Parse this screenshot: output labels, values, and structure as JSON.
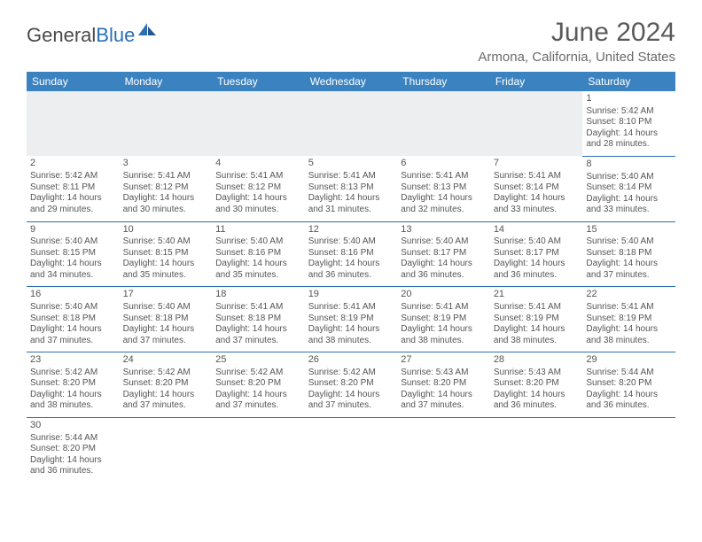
{
  "logo": {
    "text_general": "General",
    "text_blue": "Blue"
  },
  "title": "June 2024",
  "location": "Armona, California, United States",
  "dayHeaders": [
    "Sunday",
    "Monday",
    "Tuesday",
    "Wednesday",
    "Thursday",
    "Friday",
    "Saturday"
  ],
  "colors": {
    "header_bg": "#3b83c0",
    "header_text": "#ffffff",
    "row_border": "#2a6fb5",
    "blank_bg": "#eceef0",
    "body_text": "#555555",
    "title_text": "#5a5a5a",
    "location_text": "#6a6a6a",
    "logo_gray": "#4a4a4a",
    "logo_blue": "#2a6fb5"
  },
  "fonts": {
    "title_size": 30,
    "location_size": 15,
    "header_size": 12,
    "cell_size": 10,
    "daynum_size": 11
  },
  "weeks": [
    [
      null,
      null,
      null,
      null,
      null,
      null,
      {
        "day": "1",
        "sunrise": "Sunrise: 5:42 AM",
        "sunset": "Sunset: 8:10 PM",
        "daylight1": "Daylight: 14 hours",
        "daylight2": "and 28 minutes."
      }
    ],
    [
      {
        "day": "2",
        "sunrise": "Sunrise: 5:42 AM",
        "sunset": "Sunset: 8:11 PM",
        "daylight1": "Daylight: 14 hours",
        "daylight2": "and 29 minutes."
      },
      {
        "day": "3",
        "sunrise": "Sunrise: 5:41 AM",
        "sunset": "Sunset: 8:12 PM",
        "daylight1": "Daylight: 14 hours",
        "daylight2": "and 30 minutes."
      },
      {
        "day": "4",
        "sunrise": "Sunrise: 5:41 AM",
        "sunset": "Sunset: 8:12 PM",
        "daylight1": "Daylight: 14 hours",
        "daylight2": "and 30 minutes."
      },
      {
        "day": "5",
        "sunrise": "Sunrise: 5:41 AM",
        "sunset": "Sunset: 8:13 PM",
        "daylight1": "Daylight: 14 hours",
        "daylight2": "and 31 minutes."
      },
      {
        "day": "6",
        "sunrise": "Sunrise: 5:41 AM",
        "sunset": "Sunset: 8:13 PM",
        "daylight1": "Daylight: 14 hours",
        "daylight2": "and 32 minutes."
      },
      {
        "day": "7",
        "sunrise": "Sunrise: 5:41 AM",
        "sunset": "Sunset: 8:14 PM",
        "daylight1": "Daylight: 14 hours",
        "daylight2": "and 33 minutes."
      },
      {
        "day": "8",
        "sunrise": "Sunrise: 5:40 AM",
        "sunset": "Sunset: 8:14 PM",
        "daylight1": "Daylight: 14 hours",
        "daylight2": "and 33 minutes."
      }
    ],
    [
      {
        "day": "9",
        "sunrise": "Sunrise: 5:40 AM",
        "sunset": "Sunset: 8:15 PM",
        "daylight1": "Daylight: 14 hours",
        "daylight2": "and 34 minutes."
      },
      {
        "day": "10",
        "sunrise": "Sunrise: 5:40 AM",
        "sunset": "Sunset: 8:15 PM",
        "daylight1": "Daylight: 14 hours",
        "daylight2": "and 35 minutes."
      },
      {
        "day": "11",
        "sunrise": "Sunrise: 5:40 AM",
        "sunset": "Sunset: 8:16 PM",
        "daylight1": "Daylight: 14 hours",
        "daylight2": "and 35 minutes."
      },
      {
        "day": "12",
        "sunrise": "Sunrise: 5:40 AM",
        "sunset": "Sunset: 8:16 PM",
        "daylight1": "Daylight: 14 hours",
        "daylight2": "and 36 minutes."
      },
      {
        "day": "13",
        "sunrise": "Sunrise: 5:40 AM",
        "sunset": "Sunset: 8:17 PM",
        "daylight1": "Daylight: 14 hours",
        "daylight2": "and 36 minutes."
      },
      {
        "day": "14",
        "sunrise": "Sunrise: 5:40 AM",
        "sunset": "Sunset: 8:17 PM",
        "daylight1": "Daylight: 14 hours",
        "daylight2": "and 36 minutes."
      },
      {
        "day": "15",
        "sunrise": "Sunrise: 5:40 AM",
        "sunset": "Sunset: 8:18 PM",
        "daylight1": "Daylight: 14 hours",
        "daylight2": "and 37 minutes."
      }
    ],
    [
      {
        "day": "16",
        "sunrise": "Sunrise: 5:40 AM",
        "sunset": "Sunset: 8:18 PM",
        "daylight1": "Daylight: 14 hours",
        "daylight2": "and 37 minutes."
      },
      {
        "day": "17",
        "sunrise": "Sunrise: 5:40 AM",
        "sunset": "Sunset: 8:18 PM",
        "daylight1": "Daylight: 14 hours",
        "daylight2": "and 37 minutes."
      },
      {
        "day": "18",
        "sunrise": "Sunrise: 5:41 AM",
        "sunset": "Sunset: 8:18 PM",
        "daylight1": "Daylight: 14 hours",
        "daylight2": "and 37 minutes."
      },
      {
        "day": "19",
        "sunrise": "Sunrise: 5:41 AM",
        "sunset": "Sunset: 8:19 PM",
        "daylight1": "Daylight: 14 hours",
        "daylight2": "and 38 minutes."
      },
      {
        "day": "20",
        "sunrise": "Sunrise: 5:41 AM",
        "sunset": "Sunset: 8:19 PM",
        "daylight1": "Daylight: 14 hours",
        "daylight2": "and 38 minutes."
      },
      {
        "day": "21",
        "sunrise": "Sunrise: 5:41 AM",
        "sunset": "Sunset: 8:19 PM",
        "daylight1": "Daylight: 14 hours",
        "daylight2": "and 38 minutes."
      },
      {
        "day": "22",
        "sunrise": "Sunrise: 5:41 AM",
        "sunset": "Sunset: 8:19 PM",
        "daylight1": "Daylight: 14 hours",
        "daylight2": "and 38 minutes."
      }
    ],
    [
      {
        "day": "23",
        "sunrise": "Sunrise: 5:42 AM",
        "sunset": "Sunset: 8:20 PM",
        "daylight1": "Daylight: 14 hours",
        "daylight2": "and 38 minutes."
      },
      {
        "day": "24",
        "sunrise": "Sunrise: 5:42 AM",
        "sunset": "Sunset: 8:20 PM",
        "daylight1": "Daylight: 14 hours",
        "daylight2": "and 37 minutes."
      },
      {
        "day": "25",
        "sunrise": "Sunrise: 5:42 AM",
        "sunset": "Sunset: 8:20 PM",
        "daylight1": "Daylight: 14 hours",
        "daylight2": "and 37 minutes."
      },
      {
        "day": "26",
        "sunrise": "Sunrise: 5:42 AM",
        "sunset": "Sunset: 8:20 PM",
        "daylight1": "Daylight: 14 hours",
        "daylight2": "and 37 minutes."
      },
      {
        "day": "27",
        "sunrise": "Sunrise: 5:43 AM",
        "sunset": "Sunset: 8:20 PM",
        "daylight1": "Daylight: 14 hours",
        "daylight2": "and 37 minutes."
      },
      {
        "day": "28",
        "sunrise": "Sunrise: 5:43 AM",
        "sunset": "Sunset: 8:20 PM",
        "daylight1": "Daylight: 14 hours",
        "daylight2": "and 36 minutes."
      },
      {
        "day": "29",
        "sunrise": "Sunrise: 5:44 AM",
        "sunset": "Sunset: 8:20 PM",
        "daylight1": "Daylight: 14 hours",
        "daylight2": "and 36 minutes."
      }
    ],
    [
      {
        "day": "30",
        "sunrise": "Sunrise: 5:44 AM",
        "sunset": "Sunset: 8:20 PM",
        "daylight1": "Daylight: 14 hours",
        "daylight2": "and 36 minutes."
      },
      null,
      null,
      null,
      null,
      null,
      null
    ]
  ]
}
